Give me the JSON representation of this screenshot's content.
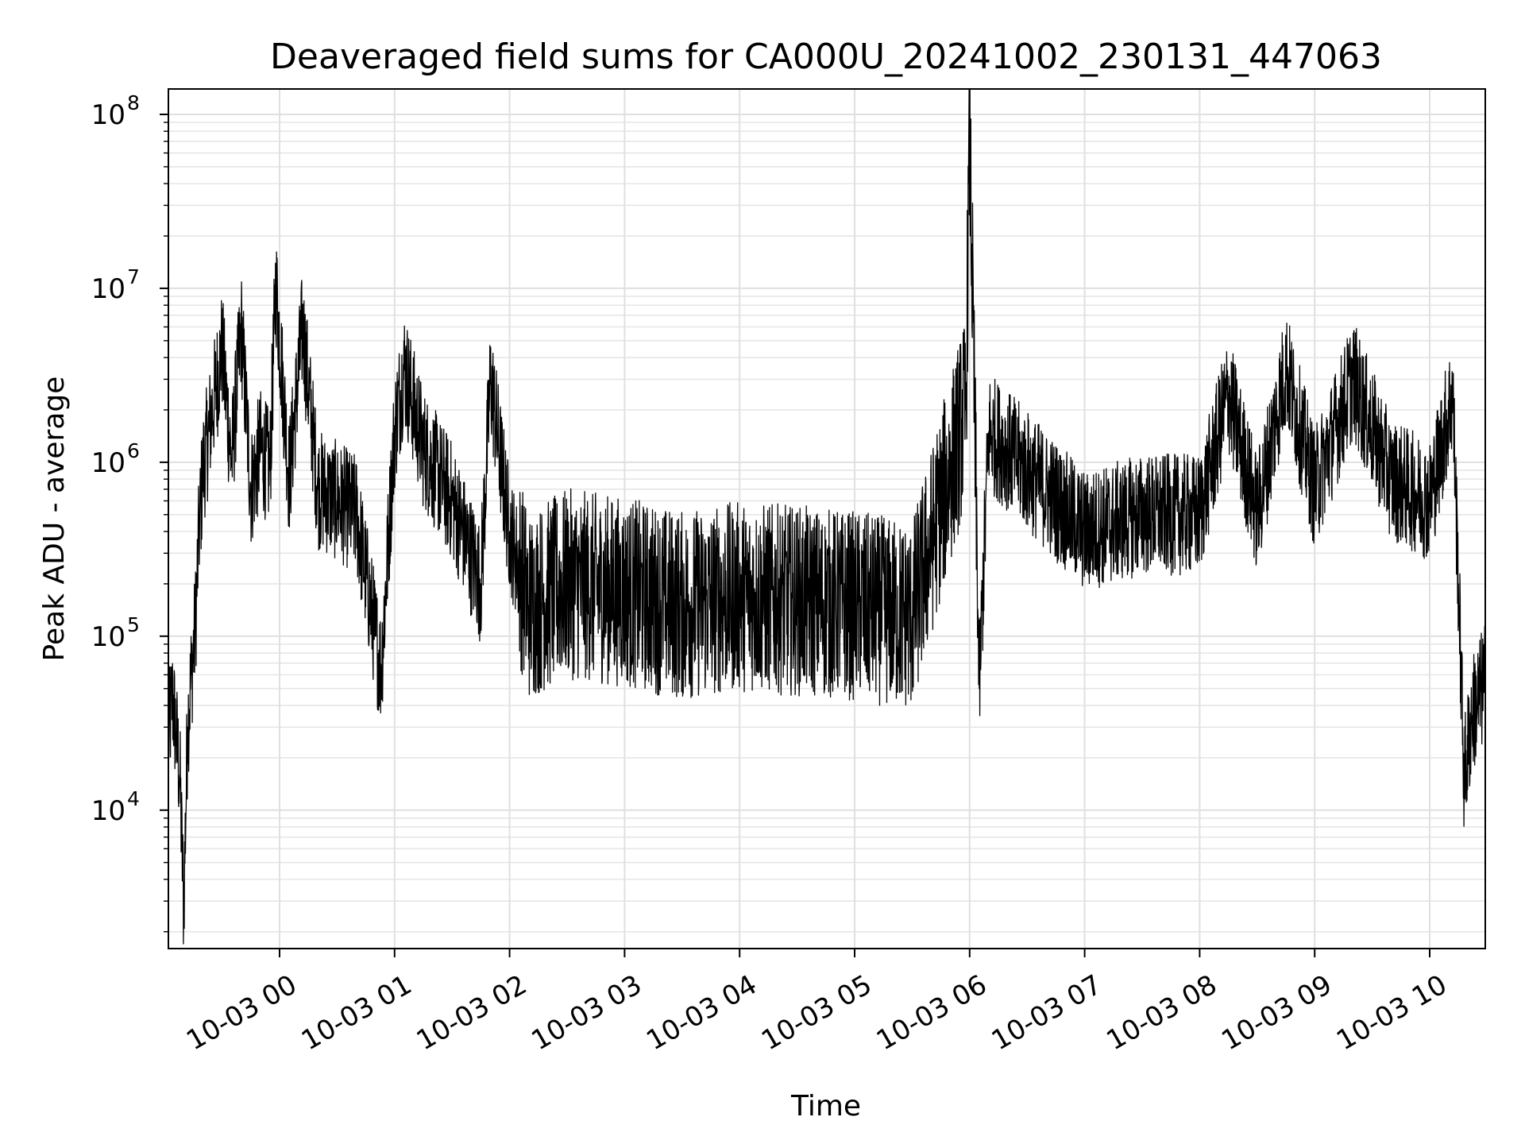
{
  "chart_data": {
    "type": "line",
    "title": "Deaveraged field sums for CA000U_20241002_230131_447063",
    "xlabel": "Time",
    "ylabel": "Peak ADU - average",
    "yscale": "log",
    "ylim": [
      1600,
      140000000
    ],
    "xlim": [
      "2024-10-02 23:02",
      "2024-10-03 10:29"
    ],
    "grid": true,
    "line_color": "#000000",
    "x_ticks": [
      {
        "t": "2024-10-03 00:00",
        "label": "10-03 00"
      },
      {
        "t": "2024-10-03 01:00",
        "label": "10-03 01"
      },
      {
        "t": "2024-10-03 02:00",
        "label": "10-03 02"
      },
      {
        "t": "2024-10-03 03:00",
        "label": "10-03 03"
      },
      {
        "t": "2024-10-03 04:00",
        "label": "10-03 04"
      },
      {
        "t": "2024-10-03 05:00",
        "label": "10-03 05"
      },
      {
        "t": "2024-10-03 06:00",
        "label": "10-03 06"
      },
      {
        "t": "2024-10-03 07:00",
        "label": "10-03 07"
      },
      {
        "t": "2024-10-03 08:00",
        "label": "10-03 08"
      },
      {
        "t": "2024-10-03 09:00",
        "label": "10-03 09"
      },
      {
        "t": "2024-10-03 10:00",
        "label": "10-03 10"
      }
    ],
    "y_ticks": [
      {
        "value": 10000,
        "base": "10",
        "exp": "4"
      },
      {
        "value": 100000,
        "base": "10",
        "exp": "5"
      },
      {
        "value": 1000000,
        "base": "10",
        "exp": "6"
      },
      {
        "value": 10000000,
        "base": "10",
        "exp": "7"
      },
      {
        "value": 100000000,
        "base": "10",
        "exp": "8"
      }
    ],
    "series": [
      {
        "points": [
          [
            "2024-10-02 23:02",
            25000
          ],
          [
            "2024-10-02 23:04",
            45000
          ],
          [
            "2024-10-02 23:06",
            28000
          ],
          [
            "2024-10-02 23:08",
            15000
          ],
          [
            "2024-10-02 23:10",
            2800
          ],
          [
            "2024-10-02 23:12",
            30000
          ],
          [
            "2024-10-02 23:14",
            60000
          ],
          [
            "2024-10-02 23:16",
            110000
          ],
          [
            "2024-10-02 23:18",
            400000
          ],
          [
            "2024-10-02 23:20",
            900000
          ],
          [
            "2024-10-02 23:25",
            2000000
          ],
          [
            "2024-10-02 23:30",
            4500000
          ],
          [
            "2024-10-02 23:35",
            1000000
          ],
          [
            "2024-10-02 23:40",
            6000000
          ],
          [
            "2024-10-02 23:45",
            700000
          ],
          [
            "2024-10-02 23:50",
            1200000
          ],
          [
            "2024-10-02 23:55",
            900000
          ],
          [
            "2024-10-02 23:58",
            11000000
          ],
          [
            "2024-10-03 00:05",
            800000
          ],
          [
            "2024-10-03 00:12",
            6000000
          ],
          [
            "2024-10-03 00:20",
            700000
          ],
          [
            "2024-10-03 00:30",
            600000
          ],
          [
            "2024-10-03 00:40",
            500000
          ],
          [
            "2024-10-03 00:50",
            100000
          ],
          [
            "2024-10-03 00:53",
            65000
          ],
          [
            "2024-10-03 01:00",
            1500000
          ],
          [
            "2024-10-03 01:05",
            3500000
          ],
          [
            "2024-10-03 01:15",
            1200000
          ],
          [
            "2024-10-03 01:30",
            600000
          ],
          [
            "2024-10-03 01:45",
            200000
          ],
          [
            "2024-10-03 01:50",
            3000000
          ],
          [
            "2024-10-03 02:00",
            400000
          ],
          [
            "2024-10-03 02:10",
            150000
          ],
          [
            "2024-10-03 02:30",
            200000
          ],
          [
            "2024-10-03 03:00",
            180000
          ],
          [
            "2024-10-03 03:30",
            150000
          ],
          [
            "2024-10-03 04:00",
            170000
          ],
          [
            "2024-10-03 04:30",
            160000
          ],
          [
            "2024-10-03 05:00",
            150000
          ],
          [
            "2024-10-03 05:30",
            130000
          ],
          [
            "2024-10-03 05:58",
            2000000
          ],
          [
            "2024-10-03 06:00",
            85000000
          ],
          [
            "2024-10-03 06:05",
            50000
          ],
          [
            "2024-10-03 06:10",
            1500000
          ],
          [
            "2024-10-03 06:30",
            900000
          ],
          [
            "2024-10-03 07:00",
            400000
          ],
          [
            "2024-10-03 07:30",
            500000
          ],
          [
            "2024-10-03 08:00",
            500000
          ],
          [
            "2024-10-03 08:15",
            2500000
          ],
          [
            "2024-10-03 08:30",
            500000
          ],
          [
            "2024-10-03 08:45",
            3500000
          ],
          [
            "2024-10-03 09:00",
            700000
          ],
          [
            "2024-10-03 09:20",
            3000000
          ],
          [
            "2024-10-03 09:40",
            800000
          ],
          [
            "2024-10-03 10:00",
            600000
          ],
          [
            "2024-10-03 10:12",
            2500000
          ],
          [
            "2024-10-03 10:15",
            200000
          ],
          [
            "2024-10-03 10:18",
            15000
          ],
          [
            "2024-10-03 10:22",
            35000
          ],
          [
            "2024-10-03 10:29",
            55000
          ]
        ]
      }
    ]
  }
}
